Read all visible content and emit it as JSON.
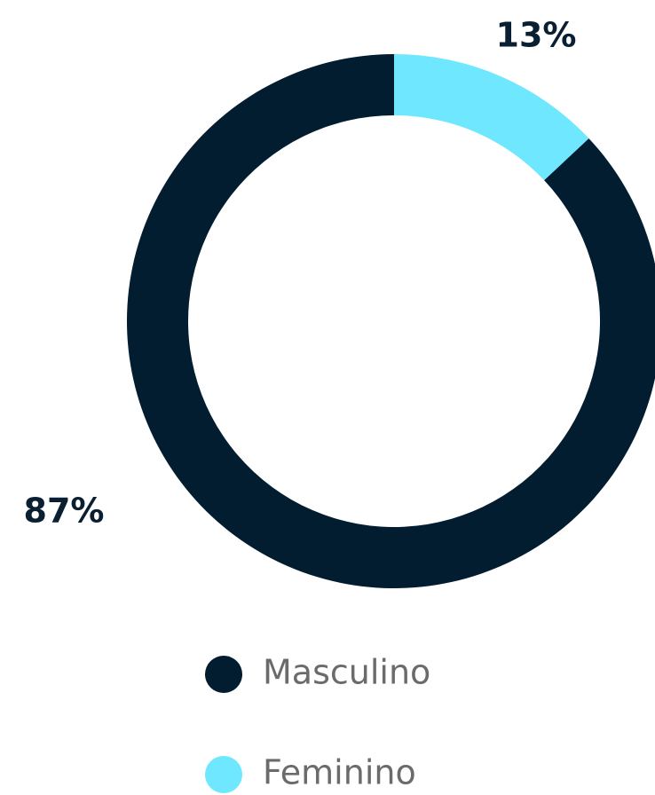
{
  "chart_data": {
    "type": "donut",
    "categories": [
      "Masculino",
      "Feminino"
    ],
    "values": [
      87,
      13
    ],
    "value_labels": [
      "87%",
      "13%"
    ],
    "colors": [
      "#021c30",
      "#6ee7ff"
    ]
  }
}
